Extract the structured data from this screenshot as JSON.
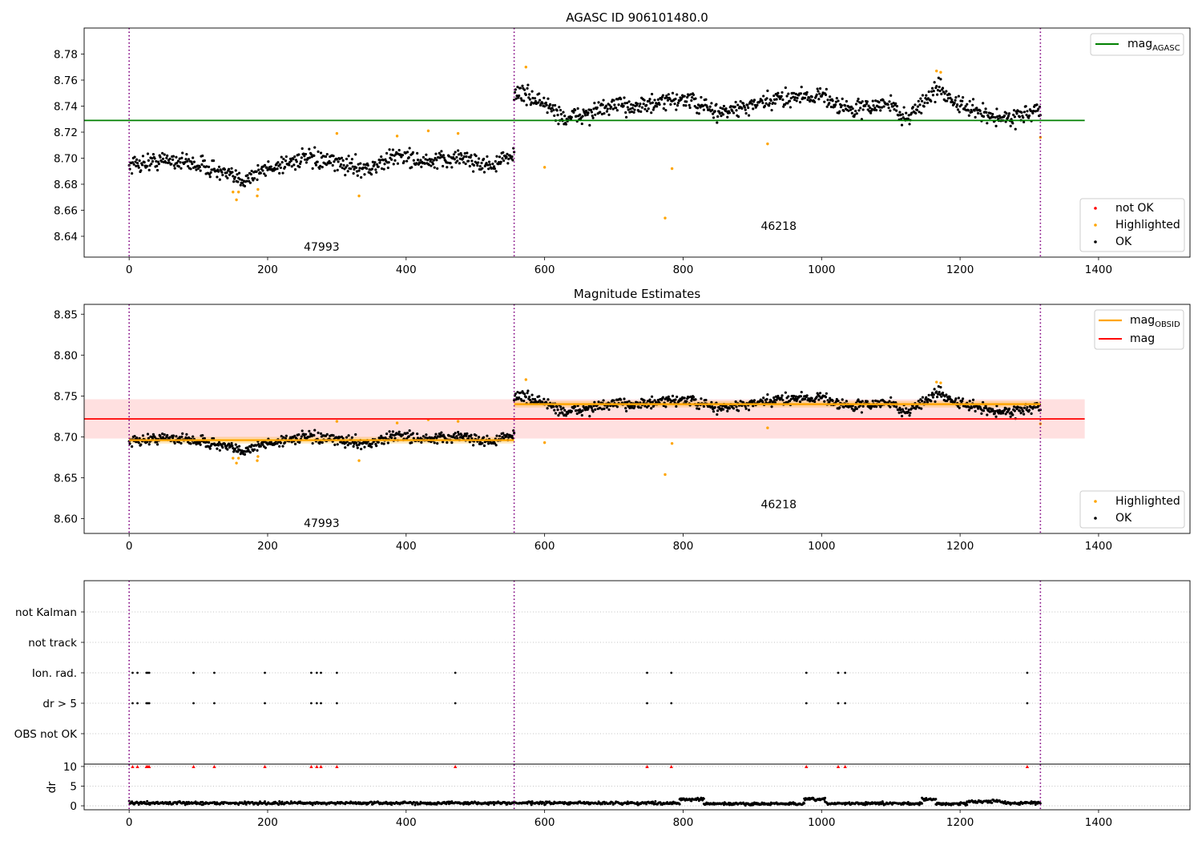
{
  "chart_data": [
    {
      "type": "scatter",
      "title": "AGASC ID 906101480.0",
      "xlim": [
        -65,
        1532
      ],
      "ylim": [
        8.624,
        8.8
      ],
      "xticks": [
        0,
        200,
        400,
        600,
        800,
        1000,
        1200,
        1400
      ],
      "yticks": [
        8.64,
        8.66,
        8.68,
        8.7,
        8.72,
        8.74,
        8.76,
        8.78
      ],
      "ytick_labels": [
        "8.64",
        "8.66",
        "8.68",
        "8.70",
        "8.72",
        "8.74",
        "8.76",
        "8.78"
      ],
      "obsid_boundaries": [
        0,
        556,
        1316
      ],
      "obsid_labels": [
        {
          "text": "47993",
          "x": 278,
          "y": 8.629
        },
        {
          "text": "46218",
          "x": 938,
          "y": 8.645
        }
      ],
      "mag_agasc": 8.729,
      "segments": [
        {
          "x_start": 0,
          "x_end": 556,
          "level": 8.697,
          "noise": 0.006,
          "trend": [
            [
              0,
              8.695
            ],
            [
              60,
              8.699
            ],
            [
              110,
              8.694
            ],
            [
              160,
              8.683
            ],
            [
              200,
              8.692
            ],
            [
              250,
              8.7
            ],
            [
              300,
              8.696
            ],
            [
              350,
              8.692
            ],
            [
              390,
              8.703
            ],
            [
              430,
              8.696
            ],
            [
              480,
              8.701
            ],
            [
              520,
              8.694
            ],
            [
              556,
              8.702
            ]
          ]
        },
        {
          "x_start": 556,
          "x_end": 1316,
          "level": 8.74,
          "noise": 0.006,
          "trend": [
            [
              556,
              8.752
            ],
            [
              600,
              8.742
            ],
            [
              630,
              8.73
            ],
            [
              700,
              8.74
            ],
            [
              760,
              8.741
            ],
            [
              800,
              8.746
            ],
            [
              850,
              8.735
            ],
            [
              900,
              8.74
            ],
            [
              960,
              8.748
            ],
            [
              1000,
              8.748
            ],
            [
              1040,
              8.737
            ],
            [
              1100,
              8.742
            ],
            [
              1120,
              8.73
            ],
            [
              1170,
              8.754
            ],
            [
              1200,
              8.74
            ],
            [
              1260,
              8.73
            ],
            [
              1316,
              8.737
            ]
          ]
        }
      ],
      "highlighted_points": [
        [
          150,
          8.674
        ],
        [
          155,
          8.668
        ],
        [
          158,
          8.674
        ],
        [
          185,
          8.671
        ],
        [
          186,
          8.676
        ],
        [
          300,
          8.719
        ],
        [
          332,
          8.671
        ],
        [
          387,
          8.717
        ],
        [
          432,
          8.721
        ],
        [
          475,
          8.719
        ],
        [
          573,
          8.77
        ],
        [
          600,
          8.693
        ],
        [
          774,
          8.654
        ],
        [
          784,
          8.692
        ],
        [
          922,
          8.711
        ],
        [
          1166,
          8.767
        ],
        [
          1172,
          8.766
        ],
        [
          1316,
          8.716
        ]
      ],
      "legends": [
        {
          "entries": [
            {
              "label": "mag",
              "sub": "AGASC",
              "kind": "line",
              "color": "#008000"
            }
          ]
        },
        {
          "entries": [
            {
              "label": "not OK",
              "kind": "dot",
              "color": "#ff0000"
            },
            {
              "label": "Highlighted",
              "kind": "dot",
              "color": "#ffa500"
            },
            {
              "label": "OK",
              "kind": "dot",
              "color": "#000000"
            }
          ]
        }
      ]
    },
    {
      "type": "scatter",
      "title": "Magnitude Estimates",
      "xlim": [
        -65,
        1532
      ],
      "ylim": [
        8.582,
        8.862
      ],
      "xticks": [
        0,
        200,
        400,
        600,
        800,
        1000,
        1200,
        1400
      ],
      "yticks": [
        8.6,
        8.65,
        8.7,
        8.75,
        8.8,
        8.85
      ],
      "ytick_labels": [
        "8.60",
        "8.65",
        "8.70",
        "8.75",
        "8.80",
        "8.85"
      ],
      "obsid_boundaries": [
        0,
        556,
        1316
      ],
      "obsid_labels": [
        {
          "text": "47993",
          "x": 278,
          "y": 8.59
        },
        {
          "text": "46218",
          "x": 938,
          "y": 8.613
        }
      ],
      "mag": 8.722,
      "mag_band": [
        8.698,
        8.746
      ],
      "mag_obsid": [
        {
          "x_start": 0,
          "x_end": 556,
          "value": 8.696,
          "band": [
            8.692,
            8.7
          ]
        },
        {
          "x_start": 556,
          "x_end": 1316,
          "value": 8.74,
          "band": [
            8.736,
            8.744
          ]
        }
      ],
      "legends": [
        {
          "entries": [
            {
              "label": "mag",
              "sub": "OBSID",
              "kind": "line",
              "color": "#ffa500"
            },
            {
              "label": "mag",
              "kind": "line",
              "color": "#ff0000"
            }
          ]
        },
        {
          "entries": [
            {
              "label": "Highlighted",
              "kind": "dot",
              "color": "#ffa500"
            },
            {
              "label": "OK",
              "kind": "dot",
              "color": "#000000"
            }
          ]
        }
      ]
    },
    {
      "type": "scatter",
      "title": "",
      "xlim": [
        -65,
        1532
      ],
      "xticks": [
        0,
        200,
        400,
        600,
        800,
        1000,
        1200,
        1400
      ],
      "flag_rows": [
        "not Kalman",
        "not track",
        "Ion. rad.",
        "dr > 5",
        "OBS not OK"
      ],
      "flag_x": [
        5,
        12,
        25,
        27,
        29,
        93,
        123,
        196,
        263,
        271,
        277,
        300,
        471,
        748,
        783,
        978,
        1024,
        1034,
        1297
      ],
      "flagged_rows": [
        "Ion. rad.",
        "dr > 5"
      ],
      "obsid_boundaries": [
        0,
        556,
        1316
      ],
      "dr_ylabel": "dr",
      "dr_ylim": [
        -0.6,
        10.6
      ],
      "dr_yticks": [
        0,
        5,
        10
      ],
      "dr_clip_value": 10,
      "dr_level_segments": [
        {
          "x_start": 0,
          "x_end": 795,
          "level": 0.7
        },
        {
          "x_start": 795,
          "x_end": 830,
          "level": 1.6
        },
        {
          "x_start": 830,
          "x_end": 975,
          "level": 0.5
        },
        {
          "x_start": 975,
          "x_end": 1005,
          "level": 1.6
        },
        {
          "x_start": 1005,
          "x_end": 1145,
          "level": 0.6
        },
        {
          "x_start": 1145,
          "x_end": 1165,
          "level": 1.6
        },
        {
          "x_start": 1165,
          "x_end": 1210,
          "level": 0.5
        },
        {
          "x_start": 1210,
          "x_end": 1265,
          "level": 1.1
        },
        {
          "x_start": 1265,
          "x_end": 1316,
          "level": 0.7
        }
      ]
    }
  ]
}
